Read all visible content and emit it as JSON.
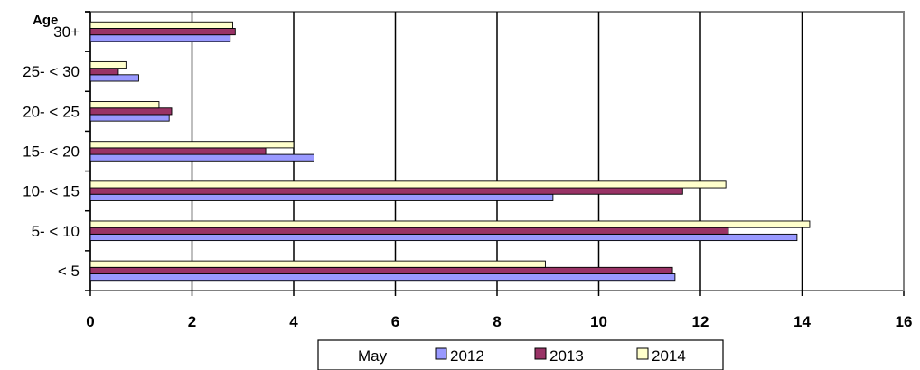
{
  "chart_data": {
    "type": "bar",
    "orientation": "horizontal",
    "title": "",
    "xlabel": "",
    "ylabel": "Age",
    "xlim": [
      0,
      16
    ],
    "x_ticks": [
      "0",
      "2",
      "4",
      "6",
      "8",
      "10",
      "12",
      "14",
      "16"
    ],
    "categories": [
      "< 5",
      "5- < 10",
      "10- < 15",
      "15- < 20",
      "20- < 25",
      "25- < 30",
      "30+"
    ],
    "series": [
      {
        "name": "2012",
        "color": "#9999ff",
        "values": [
          11.5,
          13.9,
          9.1,
          4.4,
          1.55,
          0.95,
          2.75
        ]
      },
      {
        "name": "2013",
        "color": "#993366",
        "values": [
          11.45,
          12.55,
          11.65,
          3.45,
          1.6,
          0.55,
          2.85
        ]
      },
      {
        "name": "2014",
        "color": "#ffffcc",
        "values": [
          8.95,
          14.15,
          12.5,
          4.0,
          1.35,
          0.7,
          2.8
        ]
      }
    ],
    "grid": {
      "vertical": true,
      "horizontal": false
    },
    "legend": {
      "placement": "bottom-center",
      "title": "May"
    }
  }
}
